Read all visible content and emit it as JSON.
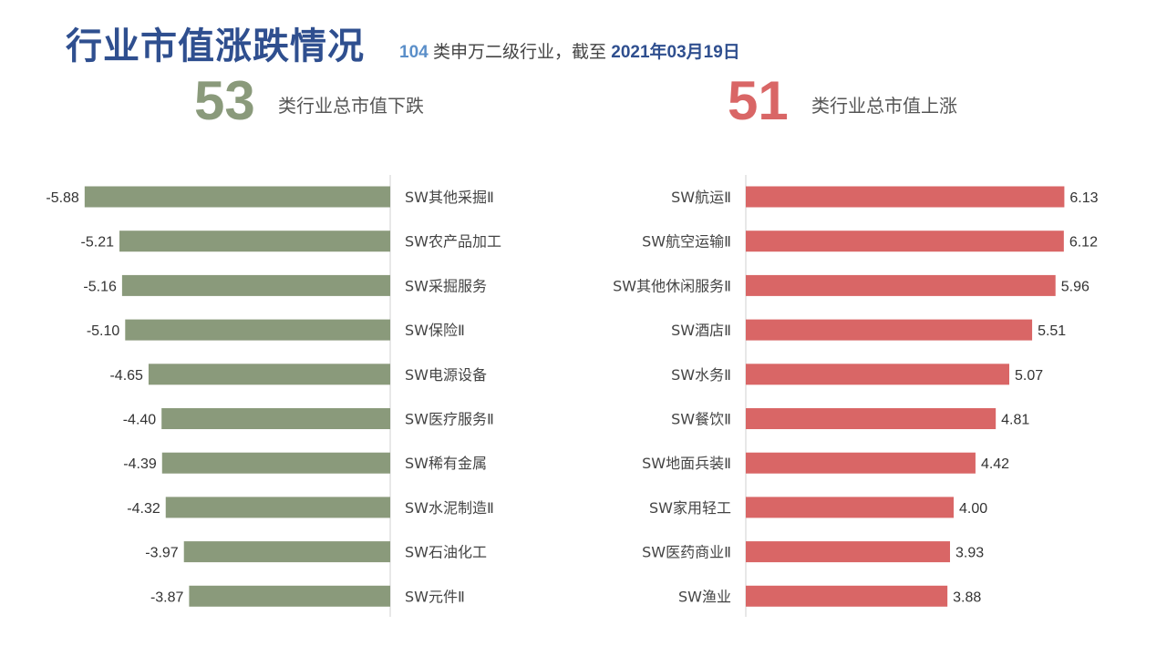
{
  "header": {
    "title": "行业市值涨跌情况",
    "subtitle_count": "104",
    "subtitle_text": " 类申万二级行业，截至 ",
    "subtitle_date": "2021年03月19日"
  },
  "summary": {
    "down_count": "53",
    "down_label": "类行业总市值下跌",
    "up_count": "51",
    "up_label": "类行业总市值上涨"
  },
  "colors": {
    "down_bar": "#8a9a7b",
    "up_bar": "#d96666",
    "title": "#2f4f8f",
    "axis": "#d0d0d0"
  },
  "chart_data": [
    {
      "type": "bar",
      "orientation": "horizontal",
      "categories": [
        "SW其他采掘Ⅱ",
        "SW农产品加工",
        "SW采掘服务",
        "SW保险Ⅱ",
        "SW电源设备",
        "SW医疗服务Ⅱ",
        "SW稀有金属",
        "SW水泥制造Ⅱ",
        "SW石油化工",
        "SW元件Ⅱ"
      ],
      "values": [
        -5.88,
        -5.21,
        -5.16,
        -5.1,
        -4.65,
        -4.4,
        -4.39,
        -4.32,
        -3.97,
        -3.87
      ],
      "data_labels": [
        "-5.88",
        "-5.21",
        "-5.16",
        "-5.10",
        "-4.65",
        "-4.40",
        "-4.39",
        "-4.32",
        "-3.97",
        "-3.87"
      ],
      "xlim": [
        -6.5,
        0
      ],
      "grid": false
    },
    {
      "type": "bar",
      "orientation": "horizontal",
      "categories": [
        "SW航运Ⅱ",
        "SW航空运输Ⅱ",
        "SW其他休闲服务Ⅱ",
        "SW酒店Ⅱ",
        "SW水务Ⅱ",
        "SW餐饮Ⅱ",
        "SW地面兵装Ⅱ",
        "SW家用轻工",
        "SW医药商业Ⅱ",
        "SW渔业"
      ],
      "values": [
        6.13,
        6.12,
        5.96,
        5.51,
        5.07,
        4.81,
        4.42,
        4.0,
        3.93,
        3.88
      ],
      "data_labels": [
        "6.13",
        "6.12",
        "5.96",
        "5.51",
        "5.07",
        "4.81",
        "4.42",
        "4.00",
        "3.93",
        "3.88"
      ],
      "xlim": [
        0,
        6.5
      ],
      "grid": false
    }
  ]
}
